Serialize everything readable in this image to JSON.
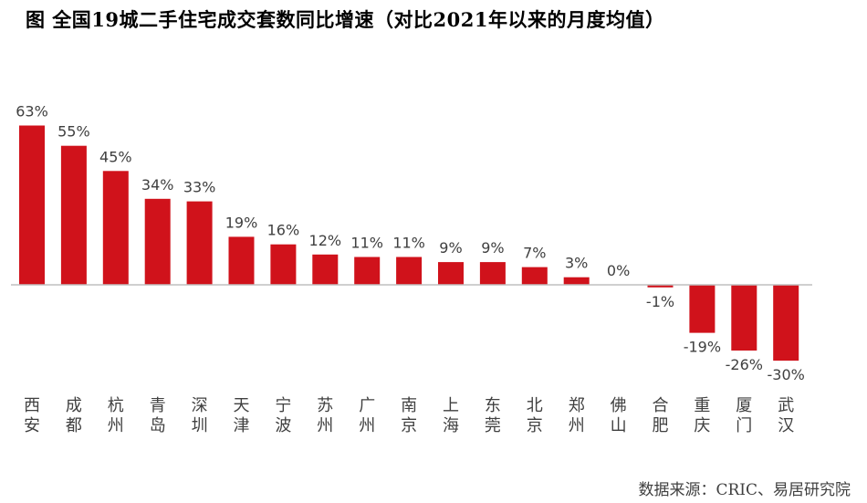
{
  "title": "图 全国19城二手住宅成交套数同比增速（对比2021年以来的月度均值）",
  "source": "数据来源：CRIC、易居研究院",
  "chart_data": {
    "type": "bar",
    "categories": [
      "西安",
      "成都",
      "杭州",
      "青岛",
      "深圳",
      "天津",
      "宁波",
      "苏州",
      "广州",
      "南京",
      "上海",
      "东莞",
      "北京",
      "郑州",
      "佛山",
      "合肥",
      "重庆",
      "厦门",
      "武汉"
    ],
    "values": [
      63,
      55,
      45,
      34,
      33,
      19,
      16,
      12,
      11,
      11,
      9,
      9,
      7,
      3,
      0,
      -1,
      -19,
      -26,
      -30
    ],
    "labels": [
      "63%",
      "55%",
      "45%",
      "34%",
      "33%",
      "19%",
      "16%",
      "12%",
      "11%",
      "11%",
      "9%",
      "9%",
      "7%",
      "3%",
      "0%",
      "-1%",
      "-19%",
      "-26%",
      "-30%"
    ],
    "unit": "%",
    "bar_color": "#D0121B",
    "axis_color": "#BFBFBF",
    "grid": false,
    "legend": false
  }
}
